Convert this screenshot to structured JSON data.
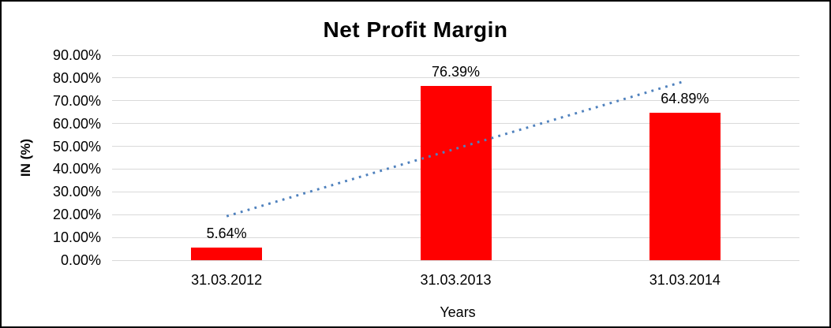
{
  "chart_data": {
    "type": "bar",
    "title": "Net Profit Margin",
    "xlabel": "Years",
    "ylabel": "IN (%)",
    "categories": [
      "31.03.2012",
      "31.03.2013",
      "31.03.2014"
    ],
    "values": [
      5.64,
      76.39,
      64.89
    ],
    "data_labels": [
      "5.64%",
      "76.39%",
      "64.89%"
    ],
    "ytick_labels": [
      "0.00%",
      "10.00%",
      "20.00%",
      "30.00%",
      "40.00%",
      "50.00%",
      "60.00%",
      "70.00%",
      "80.00%",
      "90.00%"
    ],
    "ylim": [
      0,
      90
    ],
    "ytick_step": 10,
    "grid": "horizontal",
    "legend": "none",
    "bar_color": "#ff0000",
    "gridline_color": "#d9d9d9",
    "text_color": "#000000",
    "background": "#ffffff",
    "border_color": "#000000",
    "trendline": {
      "type": "linear",
      "style": "dotted",
      "color": "#4f81bd",
      "start_pct": 19.3,
      "end_pct": 78.6
    }
  }
}
